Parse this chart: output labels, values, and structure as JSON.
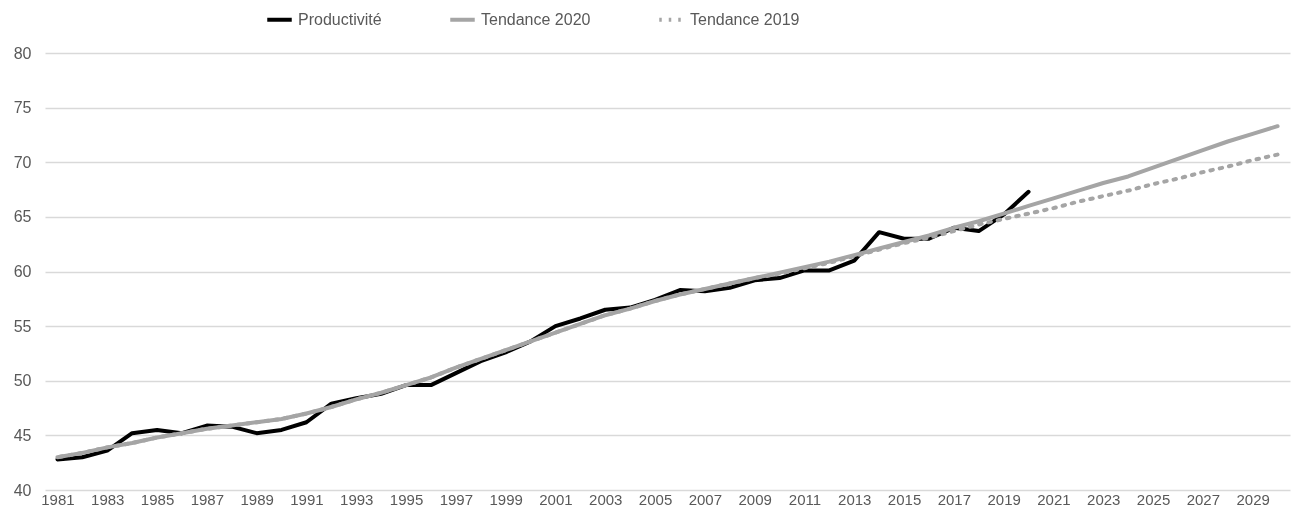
{
  "chart_data": {
    "type": "line",
    "categories": [
      "1981",
      null,
      "1983",
      null,
      "1985",
      null,
      "1987",
      null,
      "1989",
      null,
      "1991",
      null,
      "1993",
      null,
      "1995",
      null,
      "1997",
      null,
      "1999",
      null,
      "2001",
      null,
      "2003",
      null,
      "2005",
      null,
      "2007",
      null,
      "2009",
      null,
      "2011",
      null,
      "2013",
      null,
      "2015",
      null,
      "2017",
      null,
      "2019",
      null,
      "2021",
      null,
      "2023",
      null,
      "2025",
      null,
      "2027",
      null,
      "2029",
      null
    ],
    "series": [
      {
        "name": "Productivité",
        "color": "#000000",
        "line_style": "solid",
        "values": [
          42.8,
          43.0,
          43.6,
          45.2,
          45.5,
          45.2,
          45.9,
          45.8,
          45.2,
          45.5,
          46.2,
          47.9,
          48.4,
          48.8,
          49.6,
          49.6,
          50.7,
          51.8,
          52.6,
          53.6,
          55.0,
          55.7,
          56.5,
          56.7,
          57.4,
          58.3,
          58.2,
          58.5,
          59.2,
          59.4,
          60.1,
          60.1,
          61.0,
          63.6,
          63.0,
          63.0,
          64.0,
          63.7,
          65.2,
          67.3,
          null,
          null,
          null,
          null,
          null,
          null,
          null,
          null,
          null,
          null
        ]
      },
      {
        "name": "Tendance 2020",
        "color": "#a5a5a5",
        "line_style": "solid",
        "values": [
          43.0,
          43.4,
          43.9,
          44.3,
          44.8,
          45.2,
          45.6,
          45.9,
          46.2,
          46.5,
          47.0,
          47.6,
          48.3,
          48.9,
          49.6,
          50.3,
          51.2,
          52.0,
          52.8,
          53.6,
          54.4,
          55.2,
          56.0,
          56.6,
          57.3,
          57.9,
          58.4,
          58.9,
          59.4,
          59.9,
          60.4,
          60.9,
          61.5,
          62.1,
          62.7,
          63.3,
          64.0,
          64.6,
          65.3,
          66.0,
          66.7,
          67.4,
          68.1,
          68.7,
          69.5,
          70.3,
          71.1,
          71.9,
          72.6,
          73.3
        ]
      },
      {
        "name": "Tendance 2019",
        "color": "#a5a5a5",
        "line_style": "dotted",
        "values": [
          43.0,
          43.4,
          43.9,
          44.3,
          44.8,
          45.2,
          45.6,
          45.9,
          46.2,
          46.5,
          47.0,
          47.6,
          48.3,
          48.9,
          49.6,
          50.3,
          51.2,
          52.0,
          52.8,
          53.6,
          54.4,
          55.2,
          56.0,
          56.6,
          57.3,
          57.9,
          58.4,
          58.9,
          59.4,
          59.8,
          60.3,
          60.8,
          61.4,
          62.0,
          62.6,
          63.1,
          63.7,
          64.3,
          64.8,
          65.3,
          65.8,
          66.4,
          66.9,
          67.4,
          68.0,
          68.5,
          69.1,
          69.6,
          70.2,
          70.7
        ]
      }
    ],
    "ylim": [
      40,
      80
    ],
    "yticks": [
      40,
      45,
      50,
      55,
      60,
      65,
      70,
      75,
      80
    ],
    "grid": "y",
    "legend": "top",
    "marker": "none"
  }
}
